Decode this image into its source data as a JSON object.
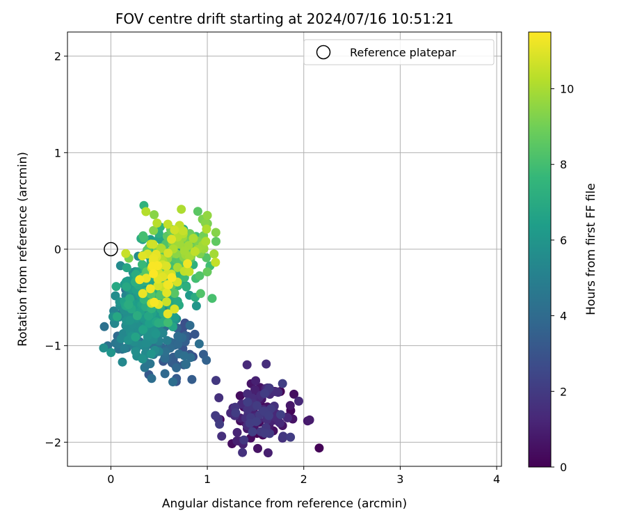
{
  "chart_data": {
    "type": "scatter",
    "title": "FOV centre drift starting at 2024/07/16 10:51:21",
    "xlabel": "Angular distance from reference (arcmin)",
    "ylabel": "Rotation from reference (arcmin)",
    "xlim": [
      -0.45,
      4.05
    ],
    "ylim": [
      -2.25,
      2.25
    ],
    "xticks": [
      0,
      1,
      2,
      3,
      4
    ],
    "yticks": [
      -2,
      -1,
      0,
      1,
      2
    ],
    "grid": true,
    "legend": {
      "placement": "top-right",
      "entries": [
        "Reference platepar"
      ]
    },
    "reference_point": {
      "x": 0,
      "y": 0,
      "label": "Reference platepar",
      "marker": "open-circle"
    },
    "colorbar": {
      "label": "Hours from first FF file",
      "range": [
        0,
        11.5
      ],
      "ticks": [
        0,
        2,
        4,
        6,
        8,
        10
      ],
      "colormap": "viridis",
      "colors": [
        "#440154",
        "#482878",
        "#3e4989",
        "#31688e",
        "#26828e",
        "#1f9e89",
        "#35b779",
        "#6ece58",
        "#b5de2b",
        "#fde725"
      ]
    },
    "clusters": [
      {
        "hours_range": [
          0.0,
          2.2
        ],
        "cx": 1.52,
        "cy": -1.72,
        "sx": 0.17,
        "sy": 0.17,
        "n": 120
      },
      {
        "hours_range": [
          2.8,
          4.2
        ],
        "cx": 0.72,
        "cy": -1.08,
        "sx": 0.16,
        "sy": 0.14,
        "n": 45
      },
      {
        "hours_range": [
          4.0,
          6.0
        ],
        "cx": 0.32,
        "cy": -0.82,
        "sx": 0.14,
        "sy": 0.18,
        "n": 170
      },
      {
        "hours_range": [
          5.5,
          7.2
        ],
        "cx": 0.42,
        "cy": -0.45,
        "sx": 0.17,
        "sy": 0.2,
        "n": 190
      },
      {
        "hours_range": [
          7.0,
          8.5
        ],
        "cx": 0.62,
        "cy": -0.18,
        "sx": 0.18,
        "sy": 0.18,
        "n": 90
      },
      {
        "hours_range": [
          8.5,
          10.5
        ],
        "cx": 0.72,
        "cy": 0.02,
        "sx": 0.17,
        "sy": 0.15,
        "n": 75
      },
      {
        "hours_range": [
          10.5,
          11.5
        ],
        "cx": 0.52,
        "cy": -0.2,
        "sx": 0.11,
        "sy": 0.17,
        "n": 35
      }
    ],
    "points": [
      {
        "x": 2.16,
        "y": -2.06,
        "h": 0.1
      },
      {
        "x": 2.04,
        "y": -1.78,
        "h": 0.8
      },
      {
        "x": 2.06,
        "y": -1.77,
        "h": 0.9
      },
      {
        "x": 1.09,
        "y": -1.36,
        "h": 1.9
      },
      {
        "x": 1.12,
        "y": -1.54,
        "h": 1.6
      },
      {
        "x": 1.63,
        "y": -2.11,
        "h": 1.0
      },
      {
        "x": 1.37,
        "y": -2.02,
        "h": 1.1
      },
      {
        "x": 1.86,
        "y": -1.62,
        "h": 0.7
      },
      {
        "x": 1.61,
        "y": -1.19,
        "h": 1.5
      },
      {
        "x": 0.96,
        "y": -1.09,
        "h": 3.4
      },
      {
        "x": 0.99,
        "y": -1.15,
        "h": 3.6
      },
      {
        "x": 0.68,
        "y": -1.34,
        "h": 3.3
      },
      {
        "x": 0.56,
        "y": -1.29,
        "h": 3.9
      },
      {
        "x": 0.84,
        "y": -1.35,
        "h": 3.4
      },
      {
        "x": 0.82,
        "y": -0.79,
        "h": 4.0
      },
      {
        "x": 0.03,
        "y": -0.64,
        "h": 5.1
      },
      {
        "x": 0.04,
        "y": -0.77,
        "h": 5.3
      },
      {
        "x": 0.12,
        "y": -1.17,
        "h": 5.4
      },
      {
        "x": 0.33,
        "y": 0.1,
        "h": 6.2
      },
      {
        "x": 0.41,
        "y": 0.1,
        "h": 6.4
      },
      {
        "x": 0.71,
        "y": 0.24,
        "h": 6.6
      },
      {
        "x": 0.95,
        "y": 0.31,
        "h": 9.2
      },
      {
        "x": 1.0,
        "y": 0.35,
        "h": 9.6
      },
      {
        "x": 0.98,
        "y": 0.27,
        "h": 9.4
      },
      {
        "x": 1.07,
        "y": -0.05,
        "h": 9.9
      },
      {
        "x": 1.09,
        "y": 0.08,
        "h": 8.6
      },
      {
        "x": 1.05,
        "y": -0.51,
        "h": 8.1
      },
      {
        "x": 0.93,
        "y": -0.46,
        "h": 8.3
      },
      {
        "x": 0.66,
        "y": 0.2,
        "h": 10.7
      },
      {
        "x": 0.33,
        "y": -0.46,
        "h": 11.2
      },
      {
        "x": 0.41,
        "y": -0.41,
        "h": 11.3
      },
      {
        "x": 0.45,
        "y": -0.55,
        "h": 11.4
      },
      {
        "x": 0.59,
        "y": -0.67,
        "h": 11.1
      },
      {
        "x": 0.44,
        "y": -0.12,
        "h": 11.2
      },
      {
        "x": 0.6,
        "y": -0.37,
        "h": 11.3
      },
      {
        "x": 0.66,
        "y": -0.62,
        "h": 10.9
      }
    ]
  }
}
